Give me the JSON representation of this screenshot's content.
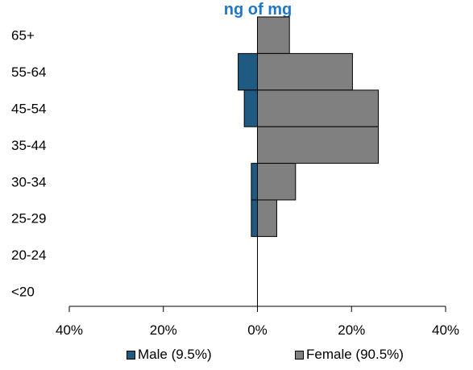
{
  "chart_data": {
    "type": "bar",
    "orientation": "horizontal",
    "layout": "population-pyramid",
    "title": "ng of mg",
    "categories": [
      "65+",
      "55-64",
      "45-54",
      "35-44",
      "30-34",
      "25-29",
      "20-24",
      "<20"
    ],
    "series": [
      {
        "name": "Male (9.5%)",
        "values": [
          0,
          4.1,
          2.8,
          0,
          1.3,
          1.3,
          0,
          0
        ]
      },
      {
        "name": "Female (90.5%)",
        "values": [
          6.8,
          20.2,
          25.7,
          25.7,
          8.1,
          4.1,
          0,
          0
        ]
      }
    ],
    "xlim": [
      -40,
      40
    ],
    "xticks": [
      -40,
      -20,
      0,
      20,
      40
    ],
    "xtick_labels": [
      "40%",
      "20%",
      "0%",
      "20%",
      "40%"
    ],
    "xlabel": "",
    "ylabel": "",
    "grid": false,
    "legend_position": "bottom",
    "colors": {
      "male": "#1f5a82",
      "female": "#808080",
      "axis": "#000000",
      "title": "#1f77c8"
    }
  }
}
